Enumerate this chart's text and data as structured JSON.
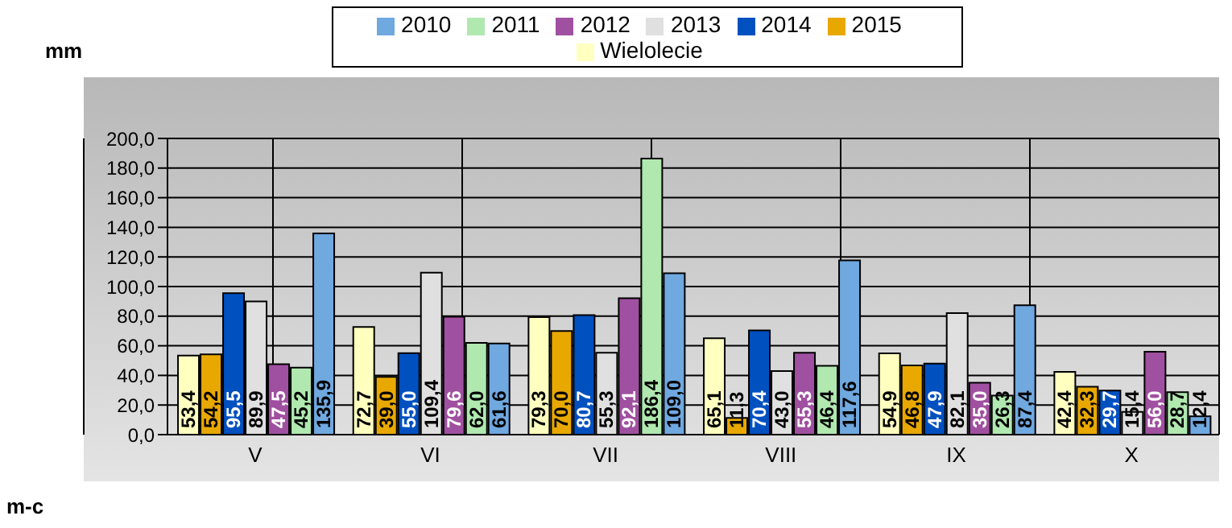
{
  "chart_data": {
    "type": "bar",
    "ylabel": "mm",
    "xlabel": "m-c",
    "categories": [
      "V",
      "VI",
      "VII",
      "VIII",
      "IX",
      "X"
    ],
    "series": [
      {
        "name": "Wielolecie",
        "color": "#ffffc0",
        "values": [
          53.4,
          72.7,
          79.3,
          65.1,
          54.9,
          42.4
        ],
        "value_labels": [
          "53,4",
          "72,7",
          "79,3",
          "65,1",
          "54,9",
          "42,4"
        ]
      },
      {
        "name": "2015",
        "color": "#e8a800",
        "values": [
          54.2,
          39.0,
          70.0,
          11.3,
          46.8,
          32.3
        ],
        "value_labels": [
          "54,2",
          "39,0",
          "70,0",
          "11,3",
          "46,8",
          "32,3"
        ]
      },
      {
        "name": "2014",
        "color": "#0050c0",
        "values": [
          95.5,
          55.0,
          80.7,
          70.4,
          47.9,
          29.7
        ],
        "value_labels": [
          "95,5",
          "55,0",
          "80,7",
          "70,4",
          "47,9",
          "29,7"
        ]
      },
      {
        "name": "2013",
        "color": "#e0e0e0",
        "values": [
          89.9,
          109.4,
          55.3,
          43.0,
          82.1,
          15.4
        ],
        "value_labels": [
          "89,9",
          "109,4",
          "55,3",
          "43,0",
          "82,1",
          "15,4"
        ]
      },
      {
        "name": "2012",
        "color": "#a050a0",
        "values": [
          47.5,
          79.6,
          92.1,
          55.3,
          35.0,
          56.0
        ],
        "value_labels": [
          "47,5",
          "79,6",
          "92,1",
          "55,3",
          "35,0",
          "56,0"
        ]
      },
      {
        "name": "2011",
        "color": "#b0e8b0",
        "values": [
          45.2,
          62.0,
          186.4,
          46.4,
          26.3,
          28.7
        ],
        "value_labels": [
          "45,2",
          "62,0",
          "186,4",
          "46,4",
          "26,3",
          "28,7"
        ]
      },
      {
        "name": "2010",
        "color": "#70a8e0",
        "values": [
          135.9,
          61.6,
          109.0,
          117.6,
          87.4,
          12.4
        ],
        "value_labels": [
          "135,9",
          "61,6",
          "109,0",
          "117,6",
          "87,4",
          "12,4"
        ]
      }
    ],
    "ylim": [
      0,
      200
    ],
    "yticks": [
      {
        "value": 0,
        "label": "0,0"
      },
      {
        "value": 20,
        "label": "20,0"
      },
      {
        "value": 40,
        "label": "40,0"
      },
      {
        "value": 60,
        "label": "60,0"
      },
      {
        "value": 80,
        "label": "80,0"
      },
      {
        "value": 100,
        "label": "100,0"
      },
      {
        "value": 120,
        "label": "120,0"
      },
      {
        "value": 140,
        "label": "140,0"
      },
      {
        "value": 160,
        "label": "160,0"
      },
      {
        "value": 180,
        "label": "180,0"
      },
      {
        "value": 200,
        "label": "200,0"
      }
    ],
    "grid": true,
    "legend": "top"
  }
}
